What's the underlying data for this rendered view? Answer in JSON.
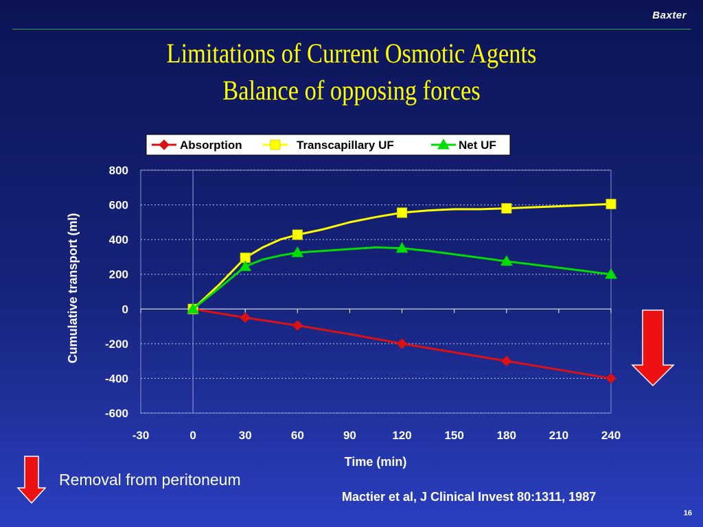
{
  "header": {
    "brand": "Baxter"
  },
  "slide": {
    "title_line1": "Limitations of Current Osmotic Agents",
    "title_line2": "Balance of opposing forces",
    "footnote": "Removal from peritoneum",
    "citation": "Mactier et al, J Clinical Invest 80:1311, 1987",
    "page_number": "16"
  },
  "colors": {
    "background_top": "#0c1456",
    "background_bottom": "#2a3fc0",
    "title": "#ffff00",
    "absorption": "#dd1111",
    "transcapillary_uf": "#ffff00",
    "net_uf": "#00dd00",
    "arrow": "#ee1111"
  },
  "chart_data": {
    "type": "line",
    "xlabel": "Time (min)",
    "ylabel": "Cumulative transport (ml)",
    "xlim": [
      -30,
      240
    ],
    "ylim": [
      -600,
      800
    ],
    "xticks": [
      -30,
      0,
      30,
      60,
      90,
      120,
      150,
      180,
      210,
      240
    ],
    "yticks": [
      800,
      600,
      400,
      200,
      0,
      -200,
      -400,
      -600
    ],
    "grid": "horizontal dotted",
    "legend_position": "top",
    "series": [
      {
        "name": "Absorption",
        "color": "#dd1111",
        "marker": "diamond",
        "markers": [
          [
            0,
            0
          ],
          [
            30,
            -50
          ],
          [
            60,
            -95
          ],
          [
            120,
            -200
          ],
          [
            180,
            -300
          ],
          [
            240,
            -400
          ]
        ],
        "curve": [
          [
            0,
            0
          ],
          [
            30,
            -50
          ],
          [
            40,
            -65
          ],
          [
            60,
            -95
          ],
          [
            90,
            -145
          ],
          [
            120,
            -200
          ],
          [
            150,
            -250
          ],
          [
            180,
            -300
          ],
          [
            210,
            -350
          ],
          [
            240,
            -400
          ]
        ]
      },
      {
        "name": "Transcapillary UF",
        "color": "#ffff00",
        "marker": "square",
        "markers": [
          [
            0,
            0
          ],
          [
            30,
            295
          ],
          [
            60,
            428
          ],
          [
            120,
            555
          ],
          [
            180,
            580
          ],
          [
            240,
            605
          ]
        ],
        "curve": [
          [
            0,
            0
          ],
          [
            15,
            140
          ],
          [
            30,
            295
          ],
          [
            40,
            355
          ],
          [
            50,
            400
          ],
          [
            60,
            428
          ],
          [
            75,
            460
          ],
          [
            90,
            500
          ],
          [
            105,
            530
          ],
          [
            120,
            555
          ],
          [
            135,
            568
          ],
          [
            150,
            575
          ],
          [
            165,
            575
          ],
          [
            180,
            580
          ],
          [
            210,
            592
          ],
          [
            240,
            605
          ]
        ]
      },
      {
        "name": "Net UF",
        "color": "#00dd00",
        "marker": "triangle",
        "markers": [
          [
            0,
            0
          ],
          [
            30,
            245
          ],
          [
            60,
            325
          ],
          [
            120,
            350
          ],
          [
            180,
            275
          ],
          [
            240,
            200
          ]
        ],
        "curve": [
          [
            0,
            0
          ],
          [
            15,
            120
          ],
          [
            30,
            245
          ],
          [
            40,
            285
          ],
          [
            50,
            308
          ],
          [
            60,
            325
          ],
          [
            75,
            335
          ],
          [
            90,
            345
          ],
          [
            105,
            355
          ],
          [
            120,
            350
          ],
          [
            135,
            335
          ],
          [
            150,
            315
          ],
          [
            165,
            295
          ],
          [
            180,
            275
          ],
          [
            210,
            238
          ],
          [
            240,
            200
          ]
        ]
      }
    ]
  }
}
